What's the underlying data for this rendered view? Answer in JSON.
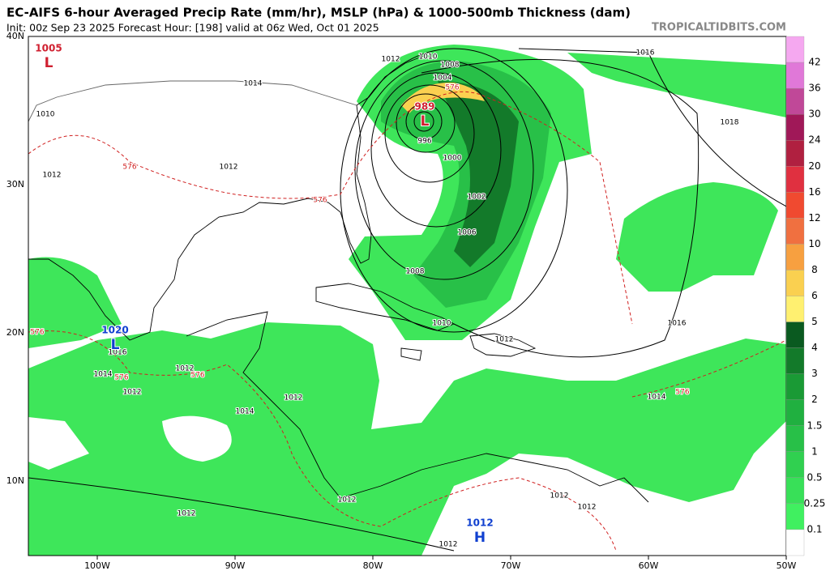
{
  "header": {
    "title": "EC-AIFS 6-hour Averaged Precip Rate (mm/hr), MSLP (hPa) & 1000-500mb Thickness (dam)",
    "subtitle": "Init: 00z Sep 23 2025   Forecast Hour: [198]   valid at 06z Wed, Oct 01 2025",
    "source": "TROPICALTIDBITS.COM"
  },
  "map": {
    "lat_labels": [
      "40N",
      "30N",
      "20N",
      "10N"
    ],
    "lon_labels": [
      "100W",
      "90W",
      "80W",
      "70W",
      "60W",
      "50W"
    ],
    "contour_labels": [
      {
        "text": "1012",
        "color": "#000"
      },
      {
        "text": "1014",
        "color": "#000"
      },
      {
        "text": "1010",
        "color": "#000"
      },
      {
        "text": "1012",
        "color": "#000"
      },
      {
        "text": "1012",
        "color": "#000"
      },
      {
        "text": "576",
        "color": "#d02020"
      },
      {
        "text": "576",
        "color": "#d02020"
      },
      {
        "text": "1016",
        "color": "#000"
      },
      {
        "text": "1018",
        "color": "#000"
      },
      {
        "text": "1008",
        "color": "#000"
      },
      {
        "text": "1010",
        "color": "#000"
      },
      {
        "text": "1004",
        "color": "#000"
      },
      {
        "text": "576",
        "color": "#d02020"
      },
      {
        "text": "996",
        "color": "#000"
      },
      {
        "text": "1000",
        "color": "#000"
      },
      {
        "text": "1002",
        "color": "#000"
      },
      {
        "text": "1006",
        "color": "#000"
      },
      {
        "text": "1008",
        "color": "#000"
      },
      {
        "text": "1010",
        "color": "#000"
      },
      {
        "text": "1012",
        "color": "#000"
      },
      {
        "text": "1016",
        "color": "#000"
      },
      {
        "text": "1014",
        "color": "#000"
      },
      {
        "text": "576",
        "color": "#d02020"
      },
      {
        "text": "1016",
        "color": "#000"
      },
      {
        "text": "1014",
        "color": "#000"
      },
      {
        "text": "1012",
        "color": "#000"
      },
      {
        "text": "1012",
        "color": "#000"
      },
      {
        "text": "576",
        "color": "#d02020"
      },
      {
        "text": "576",
        "color": "#d02020"
      },
      {
        "text": "576",
        "color": "#d02020"
      },
      {
        "text": "1012",
        "color": "#000"
      },
      {
        "text": "1014",
        "color": "#000"
      },
      {
        "text": "1012",
        "color": "#000"
      },
      {
        "text": "1012",
        "color": "#000"
      },
      {
        "text": "1012",
        "color": "#000"
      },
      {
        "text": "1012",
        "color": "#000"
      },
      {
        "text": "1012",
        "color": "#000"
      }
    ],
    "centers": [
      {
        "pressure": "1005",
        "letter": "L",
        "color": "#d02030"
      },
      {
        "pressure": "989",
        "letter": "L",
        "color": "#d02030"
      },
      {
        "pressure": "1020",
        "letter": "L",
        "color": "#1040d0"
      },
      {
        "pressure": "1012",
        "letter": "H",
        "color": "#1040d0"
      }
    ]
  },
  "colorbar": {
    "labels": [
      "42",
      "36",
      "30",
      "24",
      "20",
      "16",
      "12",
      "10",
      "8",
      "6",
      "5",
      "4",
      "3",
      "2",
      "1.5",
      "1",
      "0.5",
      "0.25",
      "0.1"
    ],
    "colors": [
      "#f5a8f0",
      "#e078d8",
      "#c04898",
      "#a01858",
      "#b02040",
      "#e03040",
      "#f04a30",
      "#f07040",
      "#f7a040",
      "#fad050",
      "#fff070",
      "#0a5a20",
      "#137a2a",
      "#1a9a35",
      "#20b040",
      "#28c048",
      "#30d050",
      "#38e058",
      "#40f060",
      "#ffffff"
    ]
  }
}
